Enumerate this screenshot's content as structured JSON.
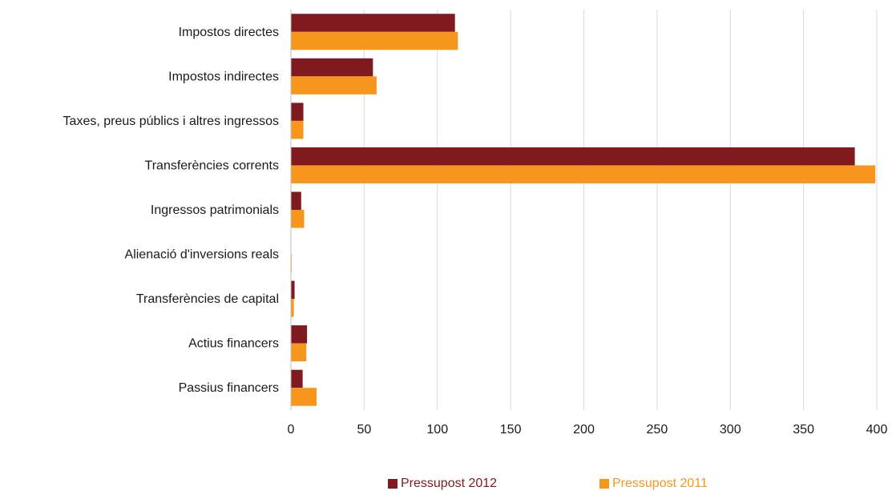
{
  "chart_data": {
    "type": "bar",
    "orientation": "horizontal",
    "categories": [
      "Impostos directes",
      "Impostos indirectes",
      "Taxes, preus públics i altres ingressos",
      "Transferències corrents",
      "Ingressos patrimonials",
      "Alienació d'inversions reals",
      "Transferències de capital",
      "Actius financers",
      "Passius financers"
    ],
    "series": [
      {
        "name": "Pressupost 2012",
        "color": "#7f1a1f",
        "values": [
          112,
          56,
          8.5,
          385,
          7,
          0,
          2.5,
          11,
          8
        ]
      },
      {
        "name": "Pressupost 2011",
        "color": "#f7961d",
        "values": [
          114,
          58.5,
          8.5,
          399,
          9,
          0.5,
          2,
          10.5,
          17.5
        ]
      }
    ],
    "xlim": [
      0,
      400
    ],
    "xticks": [
      "0",
      "50",
      "100",
      "150",
      "200",
      "250",
      "300",
      "350",
      "400"
    ],
    "grid": "vertical",
    "legend_position": "bottom"
  }
}
